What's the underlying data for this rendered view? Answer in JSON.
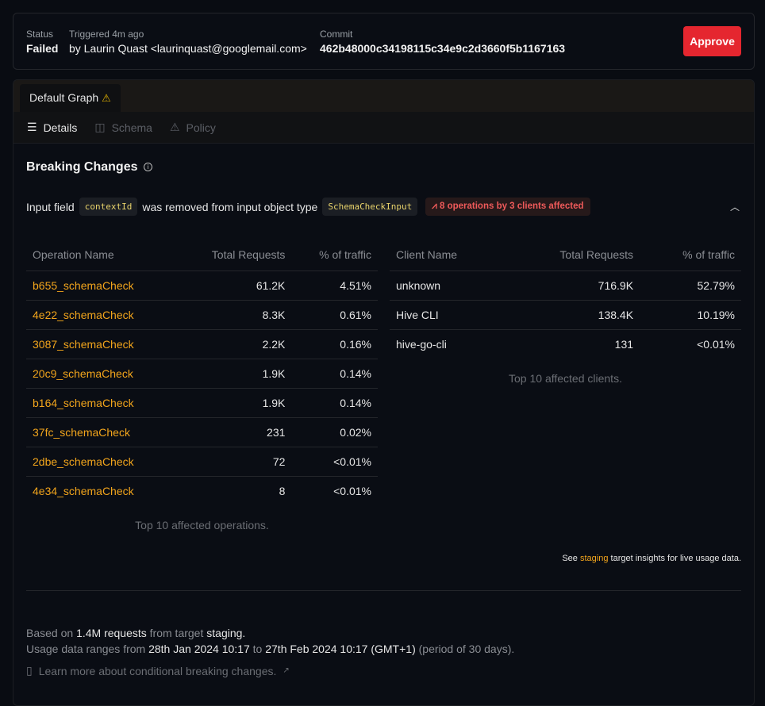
{
  "header": {
    "status_label": "Status",
    "status_value": "Failed",
    "triggered_label": "Triggered 4m ago",
    "triggered_value": "by Laurin Quast <laurinquast@googlemail.com>",
    "commit_label": "Commit",
    "commit_value": "462b48000c34198115c34e9c2d3660f5b1167163",
    "approve_label": "Approve"
  },
  "tabs": [
    {
      "label": "Default Graph",
      "icon": "warning-icon"
    }
  ],
  "subtabs": [
    {
      "label": "Details",
      "icon": "list-icon"
    },
    {
      "label": "Schema",
      "icon": "columns-icon"
    },
    {
      "label": "Policy",
      "icon": "warning-icon"
    }
  ],
  "breaking": {
    "title": "Breaking Changes",
    "change": {
      "prefix": "Input field",
      "field": "contextId",
      "middle": "was removed from input object type",
      "type": "SchemaCheckInput",
      "badge": "8 operations by 3 clients affected"
    }
  },
  "operations": {
    "headers": [
      "Operation Name",
      "Total Requests",
      "% of traffic"
    ],
    "rows": [
      [
        "b655_schemaCheck",
        "61.2K",
        "4.51%"
      ],
      [
        "4e22_schemaCheck",
        "8.3K",
        "0.61%"
      ],
      [
        "3087_schemaCheck",
        "2.2K",
        "0.16%"
      ],
      [
        "20c9_schemaCheck",
        "1.9K",
        "0.14%"
      ],
      [
        "b164_schemaCheck",
        "1.9K",
        "0.14%"
      ],
      [
        "37fc_schemaCheck",
        "231",
        "0.02%"
      ],
      [
        "2dbe_schemaCheck",
        "72",
        "<0.01%"
      ],
      [
        "4e34_schemaCheck",
        "8",
        "<0.01%"
      ]
    ],
    "caption": "Top 10 affected operations."
  },
  "clients": {
    "headers": [
      "Client Name",
      "Total Requests",
      "% of traffic"
    ],
    "rows": [
      [
        "unknown",
        "716.9K",
        "52.79%"
      ],
      [
        "Hive CLI",
        "138.4K",
        "10.19%"
      ],
      [
        "hive-go-cli",
        "131",
        "<0.01%"
      ]
    ],
    "caption": "Top 10 affected clients."
  },
  "see": {
    "prefix": "See",
    "link": "staging",
    "suffix": "target insights for live usage data."
  },
  "footer": {
    "l1a": "Based on",
    "l1b": "1.4M requests",
    "l1c": "from target",
    "l1d": "staging.",
    "l2a": "Usage data ranges from",
    "l2b": "28th Jan 2024 10:17",
    "l2c": "to",
    "l2d": "27th Feb 2024 10:17 (GMT+1)",
    "l2e": "(period of 30 days).",
    "learn": "Learn more about conditional breaking changes."
  },
  "colors": {
    "accent": "#f2a51c",
    "danger": "#e5262f",
    "bg": "#0a0d14"
  }
}
